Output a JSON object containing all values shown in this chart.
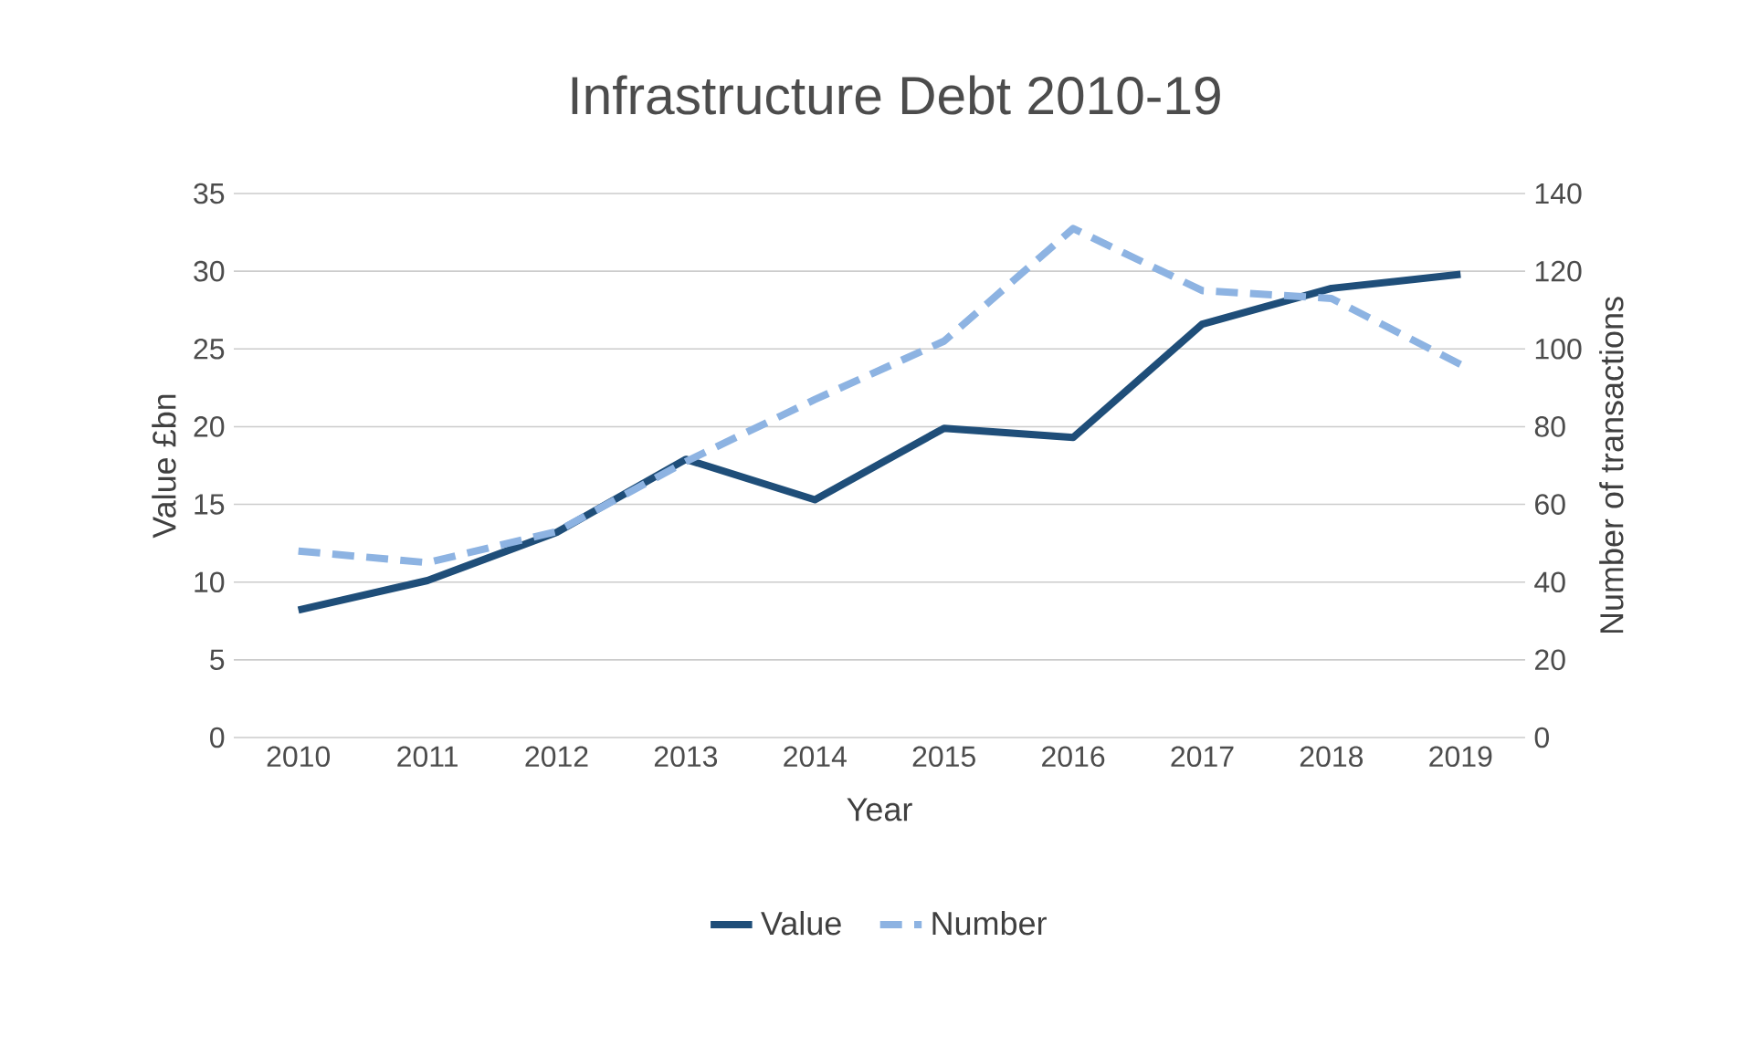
{
  "chart_data": {
    "type": "line",
    "title": "Infrastructure Debt 2010-19",
    "xlabel": "Year",
    "ylabel": "Value £bn",
    "y2label": "Number  of transactions",
    "categories": [
      "2010",
      "2011",
      "2012",
      "2013",
      "2014",
      "2015",
      "2016",
      "2017",
      "2018",
      "2019"
    ],
    "series": [
      {
        "name": "Value",
        "color": "#1f4e79",
        "line_style": "solid",
        "values": [
          8.2,
          10.1,
          13.2,
          17.9,
          15.3,
          19.9,
          19.3,
          26.6,
          28.9,
          29.8
        ]
      },
      {
        "name": "Number",
        "color": "#8db3e2",
        "line_style": "dashed",
        "axis": "y2",
        "values": [
          48,
          45,
          53,
          71,
          87,
          102,
          131,
          115,
          113,
          96
        ]
      }
    ],
    "ylim": [
      0,
      35
    ],
    "yticks": [
      0,
      5,
      10,
      15,
      20,
      25,
      30,
      35
    ],
    "y2lim": [
      0,
      140
    ],
    "y2ticks": [
      0,
      20,
      40,
      60,
      80,
      100,
      120,
      140
    ],
    "grid": "y",
    "legend": "bottom",
    "marker": "none"
  }
}
